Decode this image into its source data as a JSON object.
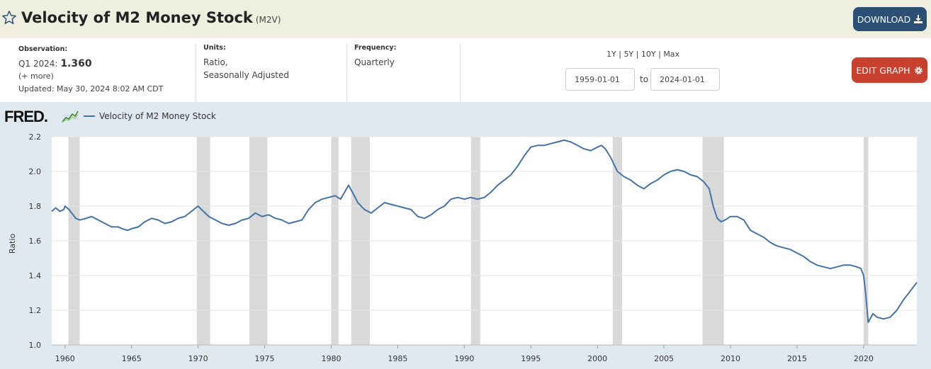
{
  "header": {
    "title": "Velocity of M2 Money Stock",
    "series_id": "(M2V)",
    "download_label": "DOWNLOAD"
  },
  "info": {
    "observation_label": "Observation:",
    "observation_period": "Q1 2024:",
    "observation_value": "1.360",
    "more_link": "(+ more)",
    "updated": "Updated: May 30, 2024 8:02 AM CDT",
    "units_label": "Units:",
    "units_line1": "Ratio,",
    "units_line2": "Seasonally Adjusted",
    "frequency_label": "Frequency:",
    "frequency_value": "Quarterly",
    "range_1y": "1Y",
    "range_5y": "5Y",
    "range_10y": "10Y",
    "range_max": "Max",
    "range_sep": "|",
    "start_date": "1959-01-01",
    "to_label": "to",
    "end_date": "2024-01-01",
    "edit_label": "EDIT GRAPH"
  },
  "brand": {
    "logo_text": "FRED",
    "logo_dot": "."
  },
  "colors": {
    "series": "#4572a7",
    "recession": "#d9d9d9",
    "download_bg": "#2c4f75",
    "edit_bg": "#c8412f"
  },
  "chart_data": {
    "type": "line",
    "title": "Velocity of M2 Money Stock",
    "legend": "Velocity of M2 Money Stock",
    "legend_position": "top-left",
    "xlabel": "",
    "ylabel": "Ratio",
    "xlim": [
      1959.0,
      2024.0
    ],
    "ylim": [
      1.0,
      2.2
    ],
    "y_ticks": [
      1.0,
      1.2,
      1.4,
      1.6,
      1.8,
      2.0,
      2.2
    ],
    "y_tick_labels": [
      "1.0",
      "1.2",
      "1.4",
      "1.6",
      "1.8",
      "2.0",
      "2.2"
    ],
    "x_ticks": [
      1960,
      1965,
      1970,
      1975,
      1980,
      1985,
      1990,
      1995,
      2000,
      2005,
      2010,
      2015,
      2020
    ],
    "x_tick_labels": [
      "1960",
      "1965",
      "1970",
      "1975",
      "1980",
      "1985",
      "1990",
      "1995",
      "2000",
      "2005",
      "2010",
      "2015",
      "2020"
    ],
    "grid": "horizontal",
    "recessions": [
      [
        1960.25,
        1961.1
      ],
      [
        1969.9,
        1970.9
      ],
      [
        1973.85,
        1975.2
      ],
      [
        1980.0,
        1980.55
      ],
      [
        1981.5,
        1982.9
      ],
      [
        1990.5,
        1991.2
      ],
      [
        2001.15,
        2001.85
      ],
      [
        2007.9,
        2009.5
      ],
      [
        2020.0,
        2020.35
      ]
    ],
    "series": [
      {
        "name": "Velocity of M2 Money Stock",
        "x": [
          1959.0,
          1959.3,
          1959.6,
          1959.9,
          1960.0,
          1960.3,
          1960.6,
          1960.8,
          1961.1,
          1961.6,
          1962.0,
          1962.5,
          1963.0,
          1963.5,
          1964.0,
          1964.3,
          1964.7,
          1965.0,
          1965.5,
          1966.0,
          1966.5,
          1967.0,
          1967.5,
          1968.0,
          1968.5,
          1969.0,
          1969.5,
          1970.0,
          1970.4,
          1970.8,
          1971.3,
          1971.8,
          1972.3,
          1972.8,
          1973.3,
          1973.8,
          1974.3,
          1974.8,
          1975.3,
          1975.8,
          1976.3,
          1976.8,
          1977.3,
          1977.8,
          1978.3,
          1978.8,
          1979.3,
          1979.8,
          1980.3,
          1980.7,
          1981.0,
          1981.3,
          1981.6,
          1982.0,
          1982.5,
          1983.0,
          1983.5,
          1984.0,
          1984.5,
          1985.0,
          1985.5,
          1986.0,
          1986.5,
          1987.0,
          1987.5,
          1988.0,
          1988.5,
          1989.0,
          1989.5,
          1990.0,
          1990.5,
          1991.0,
          1991.5,
          1992.0,
          1992.5,
          1993.0,
          1993.5,
          1994.0,
          1994.5,
          1995.0,
          1995.5,
          1996.0,
          1996.5,
          1997.0,
          1997.5,
          1998.0,
          1998.5,
          1999.0,
          1999.5,
          2000.0,
          2000.3,
          2000.6,
          2001.0,
          2001.5,
          2002.0,
          2002.5,
          2003.0,
          2003.5,
          2004.0,
          2004.5,
          2005.0,
          2005.5,
          2006.0,
          2006.5,
          2007.0,
          2007.5,
          2008.0,
          2008.4,
          2008.7,
          2009.0,
          2009.3,
          2009.6,
          2010.0,
          2010.5,
          2011.0,
          2011.5,
          2012.0,
          2012.5,
          2013.0,
          2013.5,
          2014.0,
          2014.5,
          2015.0,
          2015.5,
          2016.0,
          2016.5,
          2017.0,
          2017.5,
          2018.0,
          2018.5,
          2019.0,
          2019.5,
          2019.8,
          2020.0,
          2020.15,
          2020.35,
          2020.7,
          2021.0,
          2021.5,
          2022.0,
          2022.5,
          2023.0,
          2023.5,
          2024.0
        ],
        "values": [
          1.77,
          1.79,
          1.77,
          1.78,
          1.8,
          1.78,
          1.75,
          1.73,
          1.72,
          1.73,
          1.74,
          1.72,
          1.7,
          1.68,
          1.68,
          1.67,
          1.66,
          1.67,
          1.68,
          1.71,
          1.73,
          1.72,
          1.7,
          1.71,
          1.73,
          1.74,
          1.77,
          1.8,
          1.77,
          1.74,
          1.72,
          1.7,
          1.69,
          1.7,
          1.72,
          1.73,
          1.76,
          1.74,
          1.75,
          1.73,
          1.72,
          1.7,
          1.71,
          1.72,
          1.78,
          1.82,
          1.84,
          1.85,
          1.86,
          1.84,
          1.88,
          1.92,
          1.88,
          1.82,
          1.78,
          1.76,
          1.79,
          1.82,
          1.81,
          1.8,
          1.79,
          1.78,
          1.74,
          1.73,
          1.75,
          1.78,
          1.8,
          1.84,
          1.85,
          1.84,
          1.85,
          1.84,
          1.85,
          1.88,
          1.92,
          1.95,
          1.98,
          2.03,
          2.09,
          2.14,
          2.15,
          2.15,
          2.16,
          2.17,
          2.18,
          2.17,
          2.15,
          2.13,
          2.12,
          2.14,
          2.15,
          2.13,
          2.08,
          2.0,
          1.97,
          1.95,
          1.92,
          1.9,
          1.93,
          1.95,
          1.98,
          2.0,
          2.01,
          2.0,
          1.98,
          1.97,
          1.94,
          1.9,
          1.8,
          1.73,
          1.71,
          1.72,
          1.74,
          1.74,
          1.72,
          1.66,
          1.64,
          1.62,
          1.59,
          1.57,
          1.56,
          1.55,
          1.53,
          1.51,
          1.48,
          1.46,
          1.45,
          1.44,
          1.45,
          1.46,
          1.46,
          1.45,
          1.44,
          1.4,
          1.3,
          1.13,
          1.18,
          1.16,
          1.15,
          1.16,
          1.2,
          1.26,
          1.31,
          1.36
        ]
      }
    ]
  }
}
